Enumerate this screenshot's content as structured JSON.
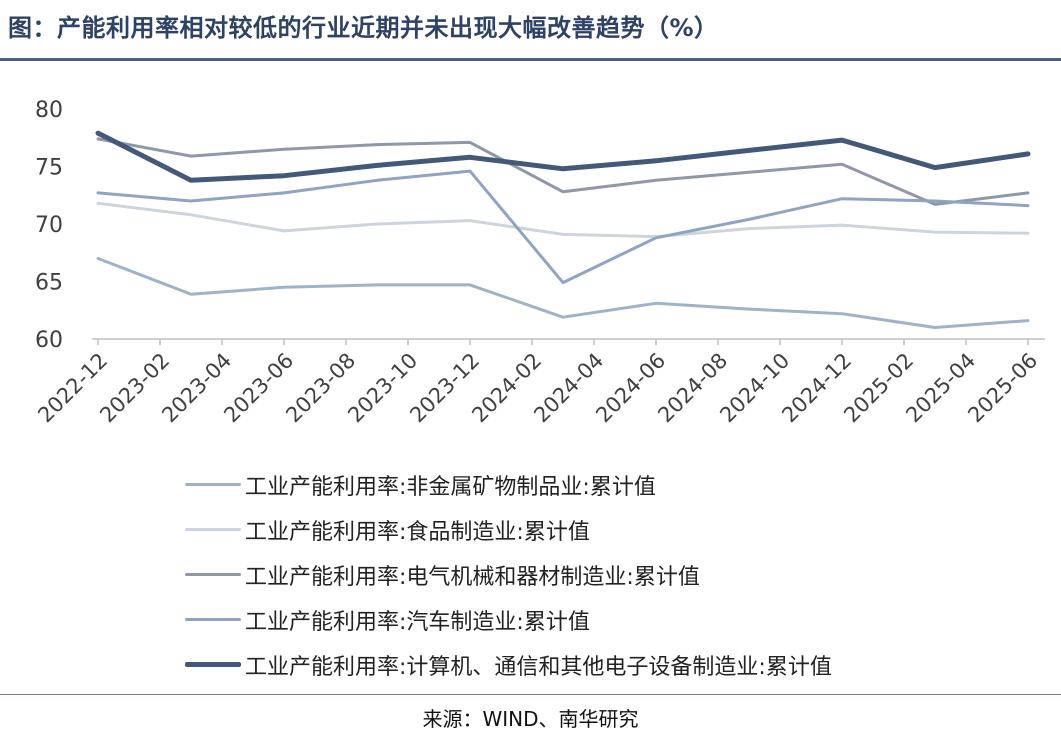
{
  "title": "图：产能利用率相对较低的行业近期并未出现大幅改善趋势（%）",
  "source": "来源：WIND、南华研究",
  "chart_data": {
    "type": "line",
    "x": [
      "2022-12",
      "2023-03",
      "2023-06",
      "2023-09",
      "2023-12",
      "2024-03",
      "2024-06",
      "2024-09",
      "2024-12",
      "2025-03",
      "2025-06"
    ],
    "xticks": [
      "2022-12",
      "2023-02",
      "2023-04",
      "2023-06",
      "2023-08",
      "2023-10",
      "2023-12",
      "2024-02",
      "2024-04",
      "2024-06",
      "2024-08",
      "2024-10",
      "2024-12",
      "2025-02",
      "2025-04",
      "2025-06"
    ],
    "yticks": [
      "80",
      "75",
      "70",
      "65",
      "60"
    ],
    "ylim": [
      60,
      80
    ],
    "grid": false,
    "legend_position": "bottom",
    "series": [
      {
        "name": "工业产能利用率:非金属矿物制品业:累计值",
        "color": "#9FB3C8",
        "width": 3,
        "values": [
          67.0,
          63.9,
          64.5,
          64.7,
          64.7,
          61.9,
          63.1,
          62.6,
          62.2,
          61.0,
          61.6
        ]
      },
      {
        "name": "工业产能利用率:食品制造业:累计值",
        "color": "#CDD4DF",
        "width": 3,
        "values": [
          71.8,
          70.8,
          69.4,
          70.0,
          70.3,
          69.1,
          68.9,
          69.6,
          69.9,
          69.3,
          69.2
        ]
      },
      {
        "name": "工业产能利用率:电气机械和器材制造业:累计值",
        "color": "#8E98A9",
        "width": 3,
        "values": [
          77.4,
          75.9,
          76.5,
          76.9,
          77.1,
          72.8,
          73.8,
          74.5,
          75.2,
          71.7,
          72.7
        ]
      },
      {
        "name": "工业产能利用率:汽车制造业:累计值",
        "color": "#8FA3C3",
        "width": 3,
        "values": [
          72.7,
          72.0,
          72.7,
          73.8,
          74.6,
          64.9,
          68.8,
          70.4,
          72.2,
          72.0,
          71.6
        ]
      },
      {
        "name": "工业产能利用率:计算机、通信和其他电子设备制造业:累计值",
        "color": "#44587A",
        "width": 5,
        "values": [
          77.9,
          73.8,
          74.2,
          75.1,
          75.8,
          74.8,
          75.5,
          76.4,
          77.3,
          74.9,
          76.1
        ]
      }
    ]
  }
}
